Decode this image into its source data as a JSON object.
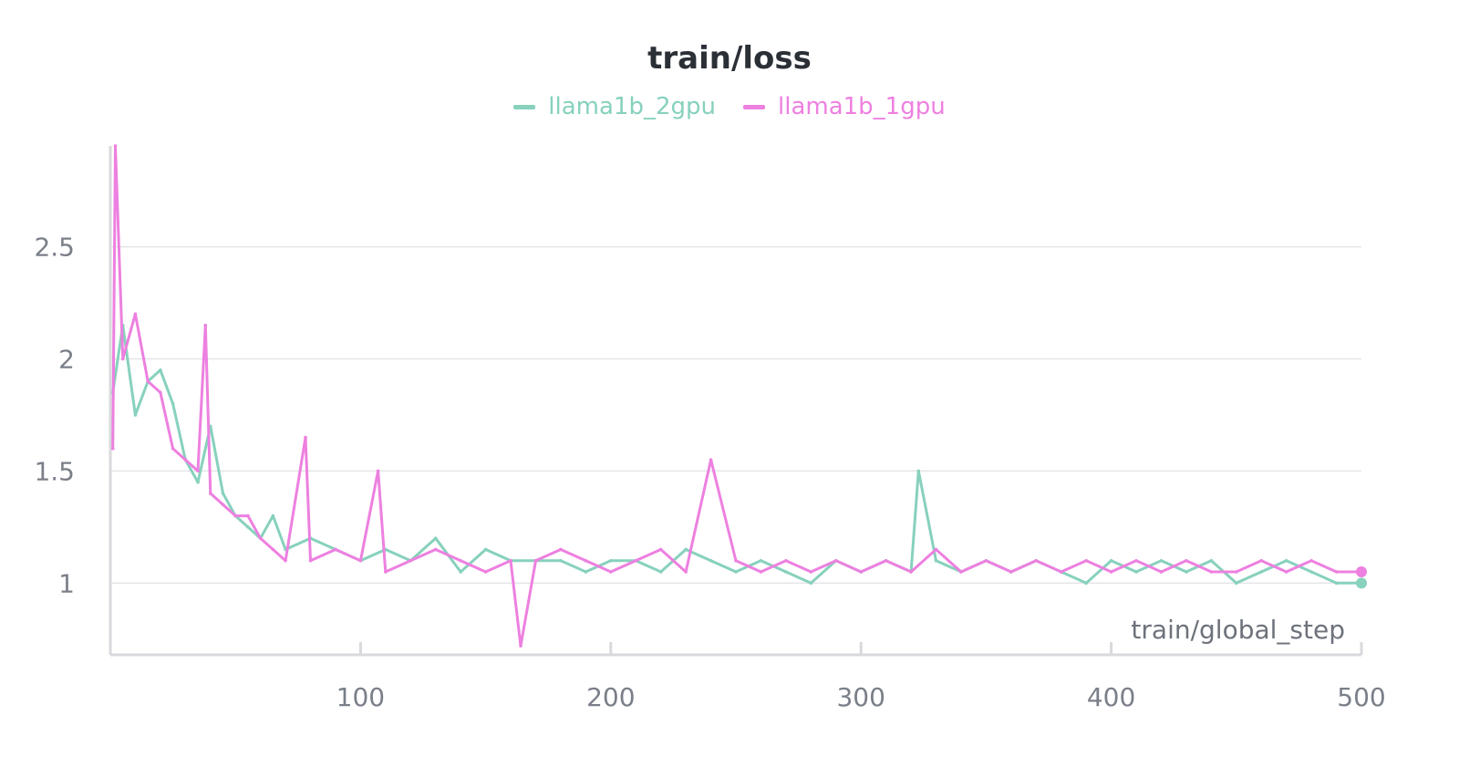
{
  "chart_data": {
    "type": "line",
    "title": "train/loss",
    "xlabel": "train/global_step",
    "ylabel": "",
    "xlim": [
      0,
      500
    ],
    "ylim": [
      0.68,
      2.95
    ],
    "x_ticks": [
      100,
      200,
      300,
      400,
      500
    ],
    "y_ticks": [
      1,
      1.5,
      2,
      2.5
    ],
    "y_tick_labels": [
      "1",
      "1.5",
      "2",
      "2.5"
    ],
    "grid": "horizontal",
    "legend_position": "top-center",
    "series": [
      {
        "name": "llama1b_2gpu",
        "color": "#87d1bd",
        "x": [
          1,
          5,
          10,
          15,
          20,
          25,
          30,
          35,
          40,
          45,
          50,
          55,
          60,
          65,
          70,
          80,
          90,
          100,
          110,
          120,
          130,
          140,
          150,
          160,
          170,
          180,
          190,
          200,
          210,
          220,
          230,
          240,
          250,
          260,
          270,
          280,
          290,
          300,
          310,
          320,
          323,
          330,
          340,
          350,
          360,
          370,
          380,
          390,
          400,
          410,
          420,
          430,
          440,
          450,
          460,
          470,
          480,
          490,
          500
        ],
        "values": [
          1.85,
          2.15,
          1.75,
          1.9,
          1.95,
          1.8,
          1.55,
          1.45,
          1.7,
          1.4,
          1.3,
          1.25,
          1.2,
          1.3,
          1.15,
          1.2,
          1.15,
          1.1,
          1.15,
          1.1,
          1.2,
          1.05,
          1.15,
          1.1,
          1.1,
          1.1,
          1.05,
          1.1,
          1.1,
          1.05,
          1.15,
          1.1,
          1.05,
          1.1,
          1.05,
          1.0,
          1.1,
          1.05,
          1.1,
          1.05,
          1.5,
          1.1,
          1.05,
          1.1,
          1.05,
          1.1,
          1.05,
          1.0,
          1.1,
          1.05,
          1.1,
          1.05,
          1.1,
          1.0,
          1.05,
          1.1,
          1.05,
          1.0,
          1.0
        ]
      },
      {
        "name": "llama1b_1gpu",
        "color": "#ed80e0",
        "x": [
          1,
          2,
          5,
          10,
          15,
          20,
          25,
          30,
          35,
          38,
          40,
          45,
          50,
          55,
          60,
          65,
          70,
          78,
          80,
          90,
          100,
          107,
          110,
          120,
          130,
          140,
          150,
          160,
          164,
          170,
          180,
          190,
          200,
          210,
          220,
          230,
          240,
          250,
          260,
          270,
          280,
          290,
          300,
          310,
          320,
          330,
          340,
          350,
          360,
          370,
          380,
          390,
          400,
          410,
          420,
          430,
          440,
          450,
          460,
          470,
          480,
          490,
          500
        ],
        "values": [
          1.6,
          2.95,
          2.0,
          2.2,
          1.9,
          1.85,
          1.6,
          1.55,
          1.5,
          2.15,
          1.4,
          1.35,
          1.3,
          1.3,
          1.2,
          1.15,
          1.1,
          1.65,
          1.1,
          1.15,
          1.1,
          1.5,
          1.05,
          1.1,
          1.15,
          1.1,
          1.05,
          1.1,
          0.72,
          1.1,
          1.15,
          1.1,
          1.05,
          1.1,
          1.15,
          1.05,
          1.55,
          1.1,
          1.05,
          1.1,
          1.05,
          1.1,
          1.05,
          1.1,
          1.05,
          1.15,
          1.05,
          1.1,
          1.05,
          1.1,
          1.05,
          1.1,
          1.05,
          1.1,
          1.05,
          1.1,
          1.05,
          1.05,
          1.1,
          1.05,
          1.1,
          1.05,
          1.05
        ]
      }
    ]
  }
}
